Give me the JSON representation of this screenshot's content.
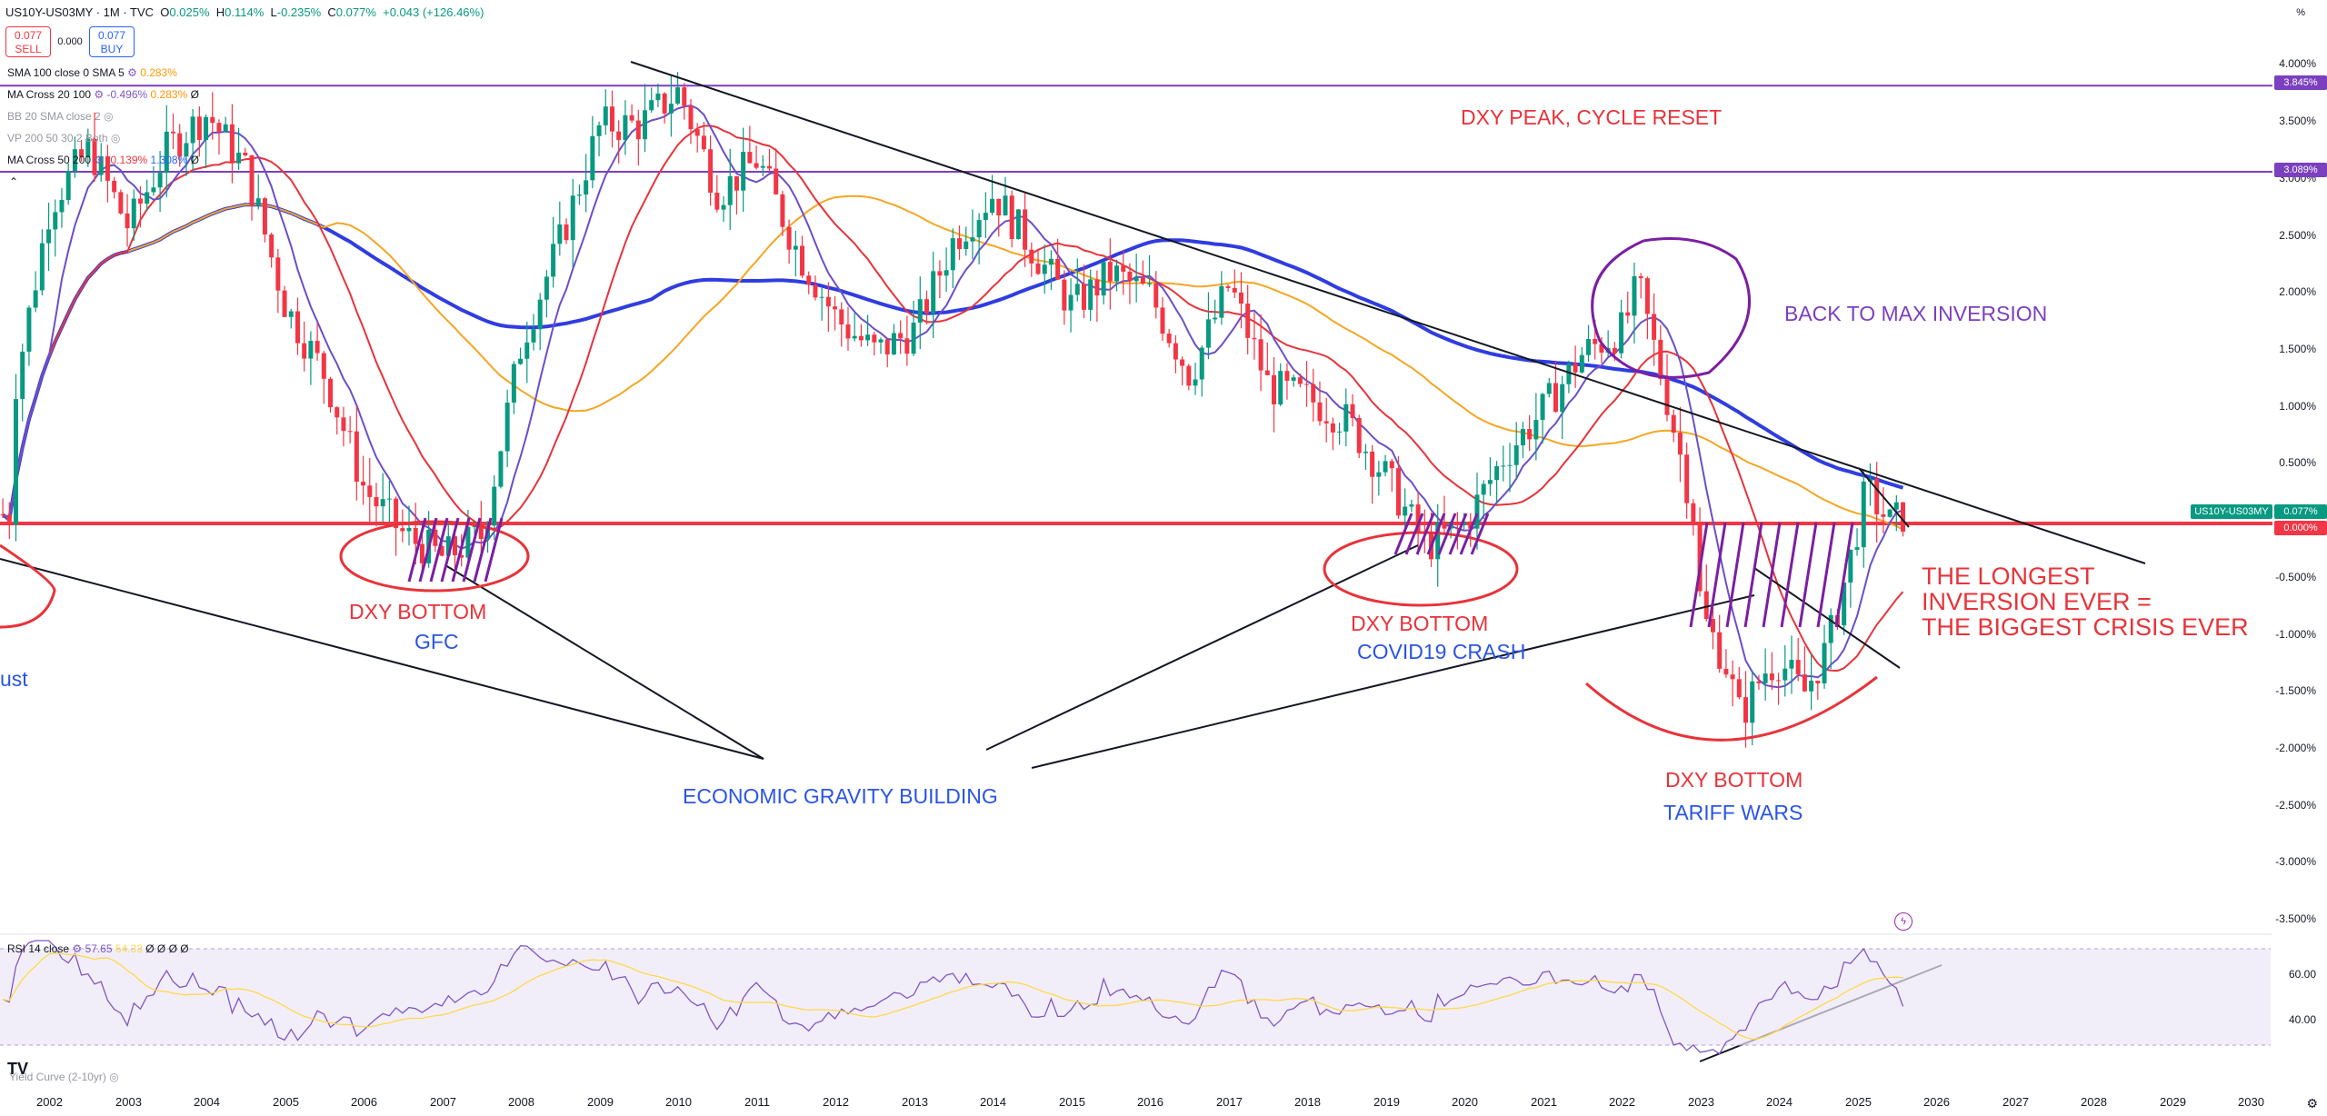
{
  "header": {
    "symbol": "US10Y-US03MY · 1M · TVC",
    "o_label": "O",
    "o_value": "0.025%",
    "h_label": "H",
    "h_value": "0.114%",
    "l_label": "L",
    "l_value": "-0.235%",
    "c_label": "C",
    "c_value": "0.077%",
    "change": "+0.043 (+126.46%)",
    "percent_toggle": "%"
  },
  "trade": {
    "sell_price": "0.077",
    "sell_label": "SELL",
    "spread": "0.000",
    "buy_price": "0.077",
    "buy_label": "BUY"
  },
  "indicators": [
    {
      "name": "SMA 100 close 0 SMA 5",
      "v1": "",
      "v2": "0.283%",
      "v3": "",
      "extra": ""
    },
    {
      "name": "MA Cross 20 100",
      "v1": "-0.496%",
      "v2": "0.283%",
      "v3": "",
      "extra": "Ø"
    },
    {
      "name": "BB 20 SMA close 2",
      "v1": "",
      "v2": "",
      "v3": "",
      "extra": ""
    },
    {
      "name": "VP 200 50 30 2 Both",
      "v1": "",
      "v2": "",
      "v3": "",
      "extra": ""
    },
    {
      "name": "MA Cross 50 200",
      "v1": "",
      "v2": "",
      "v3": "-0.139%",
      "extra": "Ø",
      "v4": "1.308%"
    }
  ],
  "y_axis": {
    "labels": [
      "4.000%",
      "3.500%",
      "3.000%",
      "2.500%",
      "2.000%",
      "1.500%",
      "1.000%",
      "0.500%",
      "-0.500%",
      "-1.000%",
      "-1.500%",
      "-2.000%",
      "-2.500%",
      "-3.000%",
      "-3.500%"
    ],
    "tags": [
      {
        "text": "3.845%",
        "color": "#7b3fbf"
      },
      {
        "text": "3.089%",
        "color": "#7b3fbf"
      },
      {
        "text": "US10Y-US03MY",
        "color": "#089981"
      },
      {
        "text": "0.077%",
        "color": "#089981"
      },
      {
        "text": "0.000%",
        "color": "#f23645"
      }
    ]
  },
  "x_axis": {
    "labels": [
      "2002",
      "2003",
      "2004",
      "2005",
      "2006",
      "2007",
      "2008",
      "2009",
      "2010",
      "2011",
      "2012",
      "2013",
      "2014",
      "2015",
      "2016",
      "2017",
      "2018",
      "2019",
      "2020",
      "2021",
      "2022",
      "2023",
      "2024",
      "2025",
      "2026",
      "2027",
      "2028",
      "2029",
      "2030"
    ]
  },
  "annotations": {
    "dxy_peak": "DXY PEAK, CYCLE RESET",
    "back_to_max": "BACK TO MAX INVERSION",
    "gfc_1": "DXY BOTTOM",
    "gfc_2": "GFC",
    "covid_1": "DXY BOTTOM",
    "covid_2": "COVID19 CRASH",
    "tariff_1": "DXY BOTTOM",
    "tariff_2": "TARIFF WARS",
    "gravity": "ECONOMIC GRAVITY BUILDING",
    "longest_1": "THE LONGEST",
    "longest_2": "INVERSION EVER =",
    "longest_3": "THE BIGGEST CRISIS EVER",
    "left_cut": "ust"
  },
  "rsi": {
    "name": "RSI 14 close",
    "value": "57.65",
    "ma": "54.33",
    "extra": "Ø Ø Ø Ø",
    "labels": [
      "60.00",
      "40.00"
    ]
  },
  "footer": {
    "yield_curve": "Yield Curve (2-10yr)",
    "logo": "TV"
  },
  "colors": {
    "up": "#089981",
    "down": "#f23645",
    "ma_blue": "#2f3de0",
    "ma_red": "#e8333a",
    "ma_orange": "#f5a623",
    "ma_purple": "#6b4fc8",
    "drawing_red": "#e8333a",
    "drawing_purple": "#7b1fa2",
    "rsi_line": "#7e57c2",
    "rsi_ma": "#ffd84a"
  }
}
